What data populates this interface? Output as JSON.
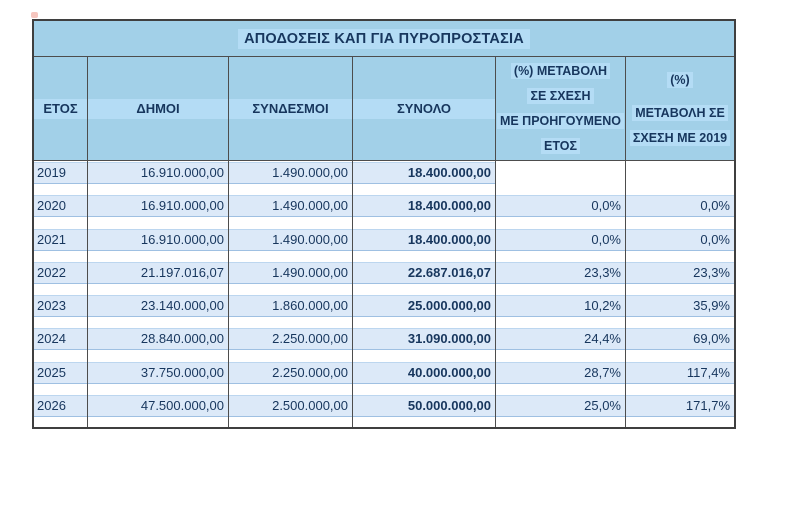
{
  "table": {
    "title": "ΑΠΟΔΟΣΕΙΣ ΚΑΠ ΓΙΑ ΠΥΡΟΠΡΟΣΤΑΣΙΑ",
    "columns": [
      {
        "label": "ΕΤΟΣ"
      },
      {
        "label": "ΔΗΜΟΙ"
      },
      {
        "label": "ΣΥΝΔΕΣΜΟΙ"
      },
      {
        "label": "ΣΥΝΟΛΟ"
      },
      {
        "lines": [
          "(%) ΜΕΤΑΒΟΛΗ",
          "ΣΕ ΣΧΕΣΗ",
          "ΜΕ ΠΡΟΗΓΟΥΜΕΝΟ",
          "ΕΤΟΣ"
        ]
      },
      {
        "lines": [
          "(%)",
          "ΜΕΤΑΒΟΛΗ ΣΕ",
          "ΣΧΕΣΗ ΜΕ 2019"
        ]
      }
    ],
    "rows": [
      {
        "year": "2019",
        "dimoi": "16.910.000,00",
        "syndesmoi": "1.490.000,00",
        "synolo": "18.400.000,00",
        "pct_prev": "",
        "pct_2019": ""
      },
      {
        "year": "2020",
        "dimoi": "16.910.000,00",
        "syndesmoi": "1.490.000,00",
        "synolo": "18.400.000,00",
        "pct_prev": "0,0%",
        "pct_2019": "0,0%"
      },
      {
        "year": "2021",
        "dimoi": "16.910.000,00",
        "syndesmoi": "1.490.000,00",
        "synolo": "18.400.000,00",
        "pct_prev": "0,0%",
        "pct_2019": "0,0%"
      },
      {
        "year": "2022",
        "dimoi": "21.197.016,07",
        "syndesmoi": "1.490.000,00",
        "synolo": "22.687.016,07",
        "pct_prev": "23,3%",
        "pct_2019": "23,3%"
      },
      {
        "year": "2023",
        "dimoi": "23.140.000,00",
        "syndesmoi": "1.860.000,00",
        "synolo": "25.000.000,00",
        "pct_prev": "10,2%",
        "pct_2019": "35,9%"
      },
      {
        "year": "2024",
        "dimoi": "28.840.000,00",
        "syndesmoi": "2.250.000,00",
        "synolo": "31.090.000,00",
        "pct_prev": "24,4%",
        "pct_2019": "69,0%"
      },
      {
        "year": "2025",
        "dimoi": "37.750.000,00",
        "syndesmoi": "2.250.000,00",
        "synolo": "40.000.000,00",
        "pct_prev": "28,7%",
        "pct_2019": "117,4%"
      },
      {
        "year": "2026",
        "dimoi": "47.500.000,00",
        "syndesmoi": "2.500.000,00",
        "synolo": "50.000.000,00",
        "pct_prev": "25,0%",
        "pct_2019": "171,7%"
      }
    ],
    "colors": {
      "header_bg": "#a2d0e8",
      "highlight_stripe": "#b4dcf5",
      "row_band": "#dce9f8",
      "text": "#17365d",
      "grid_line": "#4d4d4d"
    }
  }
}
